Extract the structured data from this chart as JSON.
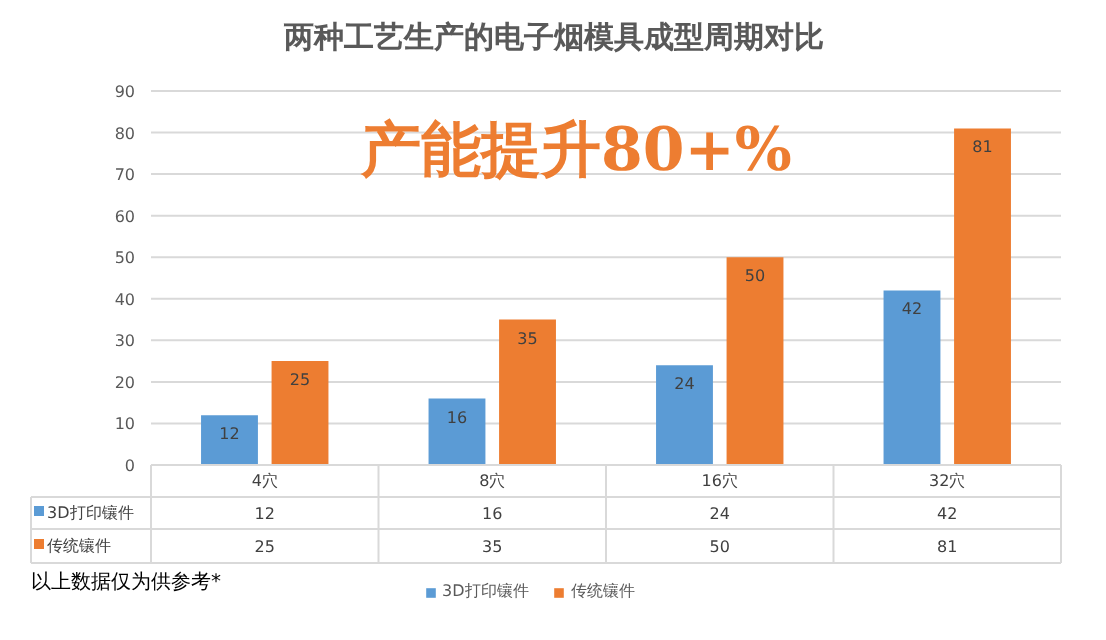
{
  "chart_data": {
    "type": "bar",
    "title": "两种工艺生产的电子烟模具成型周期对比",
    "categories": [
      "4穴",
      "8穴",
      "16穴",
      "32穴"
    ],
    "series": [
      {
        "name": "3D打印镶件",
        "color": "#5b9bd5",
        "values": [
          12,
          16,
          24,
          42
        ],
        "value_labels": [
          "12",
          "16",
          "24",
          "42"
        ]
      },
      {
        "name": "传统镶件",
        "color": "#ed7d31",
        "values": [
          25,
          35,
          50,
          81
        ],
        "value_labels": [
          "25",
          "35",
          "50",
          "81"
        ]
      }
    ],
    "ylim": [
      0,
      90
    ],
    "yticks": [
      0,
      10,
      20,
      30,
      40,
      50,
      60,
      70,
      80,
      90
    ],
    "grid": "y",
    "legend": "bottom",
    "annotations": [
      "产能提升80+%",
      "以上数据仅为供参考*",
      "12",
      "16",
      "24",
      "42",
      "25",
      "35",
      "50",
      "81"
    ]
  }
}
